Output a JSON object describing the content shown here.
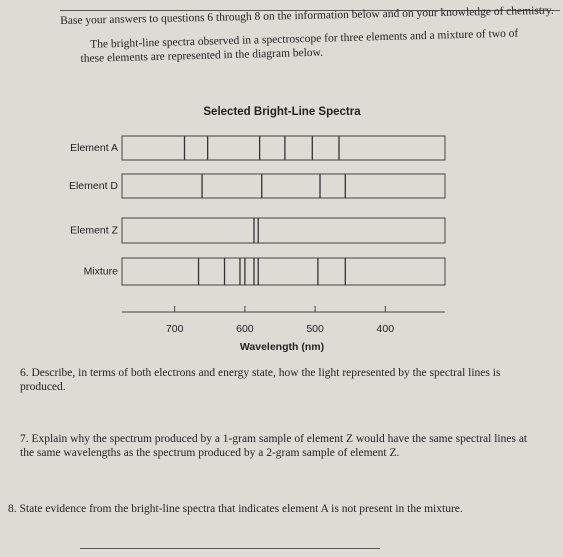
{
  "intro": {
    "text": "Base your answers to questions 6 through 8 on the information below and on your knowledge of chemistry.",
    "description": "The bright-line spectra observed in a spectroscope for three elements and a mixture of two of these elements are represented in the diagram below."
  },
  "chart_data": {
    "type": "spectra",
    "title": "Selected Bright-Line Spectra",
    "x_label": "Wavelength (nm)",
    "xlim": [
      775,
      315
    ],
    "xticks": [
      700,
      600,
      500,
      400
    ],
    "series": [
      {
        "name": "Element A",
        "values": [
          686,
          653,
          579,
          543,
          504,
          466
        ]
      },
      {
        "name": "Element D",
        "values": [
          661,
          576,
          493,
          457
        ]
      },
      {
        "name": "Element Z",
        "values": [
          587,
          581
        ]
      },
      {
        "name": "Mixture",
        "values": [
          666,
          629,
          607,
          600,
          587,
          581,
          496,
          457
        ]
      }
    ]
  },
  "questions": [
    {
      "text": "6. Describe, in terms of both electrons and energy state, how the light represented by the spectral lines is produced."
    },
    {
      "text": "7. Explain why the spectrum produced by a 1-gram sample of element Z would have the same spectral lines at the same wavelengths as the spectrum produced by a 2-gram sample of element Z."
    },
    {
      "text": "8. State evidence from the bright-line spectra that indicates element A is not present in the mixture."
    }
  ]
}
